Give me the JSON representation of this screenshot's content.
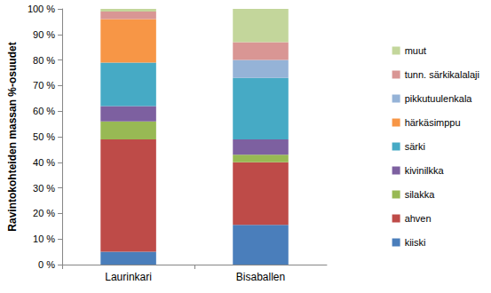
{
  "chart_data": {
    "type": "bar",
    "stacked": true,
    "y_label": "Ravintokohteiden massan %-osuudet",
    "categories": [
      "Laurinkari",
      "Bisaballen"
    ],
    "series": [
      {
        "name": "kiiski",
        "color": "#4a7ebb",
        "values": [
          5,
          15.5
        ]
      },
      {
        "name": "ahven",
        "color": "#be4b48",
        "values": [
          44,
          24.5
        ]
      },
      {
        "name": "silakka",
        "color": "#98b954",
        "values": [
          7,
          3
        ]
      },
      {
        "name": "kivinilkka",
        "color": "#7d60a0",
        "values": [
          6,
          6
        ]
      },
      {
        "name": "särki",
        "color": "#46aac5",
        "values": [
          17,
          24
        ]
      },
      {
        "name": "härkäsimppu",
        "color": "#f79646",
        "values": [
          17,
          0
        ]
      },
      {
        "name": "pikkutuulenkala",
        "color": "#95b3d7",
        "values": [
          0,
          7
        ]
      },
      {
        "name": "tunn. särkikalalaji",
        "color": "#d99694",
        "values": [
          3,
          7
        ]
      },
      {
        "name": "muut",
        "color": "#c3d69b",
        "values": [
          1,
          13
        ]
      }
    ],
    "ylim": [
      0,
      100
    ],
    "yticks": [
      {
        "value": 0,
        "label": "0 %"
      },
      {
        "value": 10,
        "label": "10 %"
      },
      {
        "value": 20,
        "label": "20 %"
      },
      {
        "value": 30,
        "label": "30 %"
      },
      {
        "value": 40,
        "label": "40 %"
      },
      {
        "value": 50,
        "label": "50 %"
      },
      {
        "value": 60,
        "label": "60 %"
      },
      {
        "value": 70,
        "label": "70 %"
      },
      {
        "value": 80,
        "label": "80 %"
      },
      {
        "value": 90,
        "label": "90 %"
      },
      {
        "value": 100,
        "label": "100 %"
      }
    ],
    "grid": false,
    "legend": "right"
  }
}
